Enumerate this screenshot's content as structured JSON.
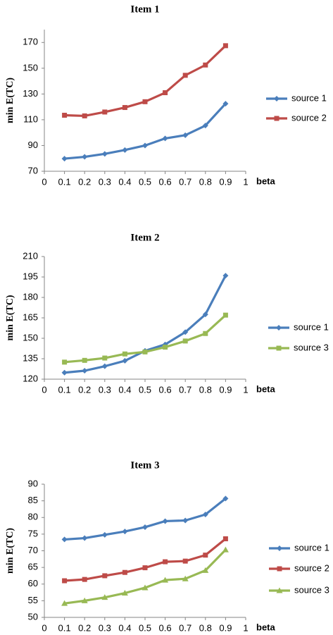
{
  "colors": {
    "source 1": "#4a7ebb",
    "source 2": "#be4b48",
    "source 3": "#98b954"
  },
  "chart_data": [
    {
      "type": "line",
      "title": "Item 1",
      "xlabel": "beta",
      "ylabel": "min E(TC)",
      "xlim": [
        0,
        1
      ],
      "ylim": [
        70,
        180
      ],
      "xticks": [
        "0",
        "0.1",
        "0.2",
        "0.3",
        "0.4",
        "0.5",
        "0.6",
        "0.7",
        "0.8",
        "0.9",
        "1"
      ],
      "yticks": [
        70,
        90,
        110,
        130,
        150,
        170
      ],
      "legend_position": "right",
      "x": [
        0.1,
        0.2,
        0.3,
        0.4,
        0.5,
        0.6,
        0.7,
        0.8,
        0.9
      ],
      "series": [
        {
          "name": "source 1",
          "marker": "diamond",
          "values": [
            79.8,
            81.2,
            83.5,
            86.5,
            90.0,
            95.5,
            98.0,
            105.5,
            122.5
          ]
        },
        {
          "name": "source 2",
          "marker": "square",
          "values": [
            113.5,
            113.0,
            116.0,
            119.5,
            124.0,
            131.0,
            144.5,
            152.5,
            167.5
          ]
        }
      ]
    },
    {
      "type": "line",
      "title": "Item 2",
      "xlabel": "beta",
      "ylabel": "min E(TC)",
      "xlim": [
        0,
        1
      ],
      "ylim": [
        120,
        210
      ],
      "xticks": [
        "0",
        "0.1",
        "0.2",
        "0.3",
        "0.4",
        "0.5",
        "0.6",
        "0.7",
        "0.8",
        "0.9",
        "1"
      ],
      "yticks": [
        120,
        135,
        150,
        165,
        180,
        195,
        210
      ],
      "legend_position": "right",
      "x": [
        0.1,
        0.2,
        0.3,
        0.4,
        0.5,
        0.6,
        0.7,
        0.8,
        0.9
      ],
      "series": [
        {
          "name": "source 1",
          "marker": "diamond",
          "values": [
            124.8,
            126.2,
            129.5,
            133.5,
            140.8,
            145.5,
            154.5,
            167.5,
            196.0
          ]
        },
        {
          "name": "source 3",
          "marker": "square",
          "values": [
            132.5,
            133.8,
            135.5,
            138.5,
            140.0,
            143.5,
            148.0,
            153.5,
            167.0
          ]
        }
      ]
    },
    {
      "type": "line",
      "title": "Item 3",
      "xlabel": "beta",
      "ylabel": "min E(TC)",
      "xlim": [
        0,
        1
      ],
      "ylim": [
        50,
        90
      ],
      "xticks": [
        "0",
        "0.1",
        "0.2",
        "0.3",
        "0.4",
        "0.5",
        "0.6",
        "0.7",
        "0.8",
        "0.9",
        "1"
      ],
      "yticks": [
        50,
        55,
        60,
        65,
        70,
        75,
        80,
        85,
        90
      ],
      "legend_position": "right",
      "x": [
        0.1,
        0.2,
        0.3,
        0.4,
        0.5,
        0.6,
        0.7,
        0.8,
        0.9
      ],
      "series": [
        {
          "name": "source 1",
          "marker": "diamond",
          "values": [
            73.4,
            73.8,
            74.8,
            75.8,
            77.1,
            78.9,
            79.1,
            80.9,
            85.7
          ]
        },
        {
          "name": "source 2",
          "marker": "square",
          "values": [
            61.0,
            61.4,
            62.5,
            63.5,
            64.9,
            66.7,
            66.9,
            68.7,
            73.6
          ]
        },
        {
          "name": "source 3",
          "marker": "triangle",
          "values": [
            54.2,
            55.0,
            56.0,
            57.3,
            58.9,
            61.2,
            61.6,
            64.1,
            70.3
          ]
        }
      ]
    }
  ]
}
